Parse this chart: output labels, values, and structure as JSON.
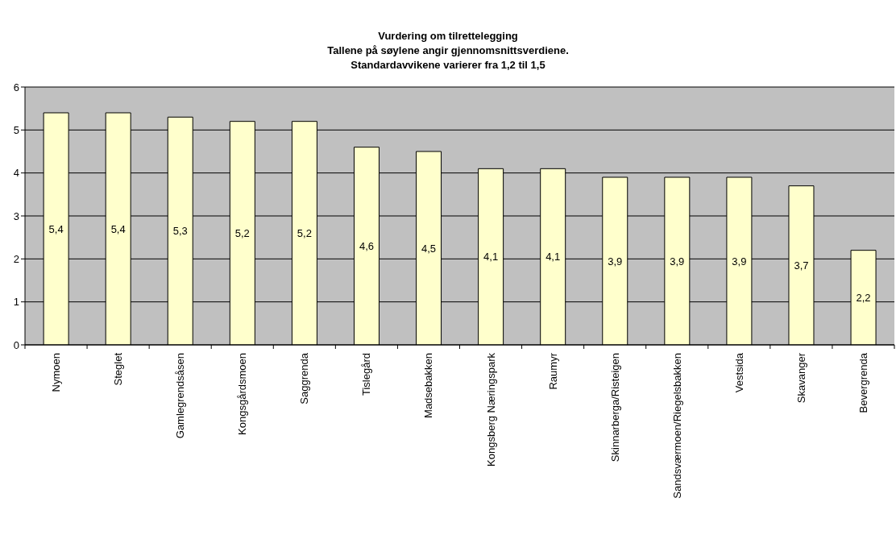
{
  "chart_data": {
    "type": "bar",
    "title": "Vurdering om tilrettelegging\nTallene på søylene angir gjennomsnittsverdiene.\nStandardavvikene varierer fra 1,2 til 1,5",
    "categories": [
      "Nymoen",
      "Steglet",
      "Gamlegrendsåsen",
      "Kongsgårdsmoen",
      "Saggrenda",
      "Tislegård",
      "Madsebakken",
      "Kongsberg Næringspark",
      "Raumyr",
      "Skinnarberga/Risteigen",
      "Sandsværmoen/Riegelsbakken",
      "Vestsida",
      "Skavanger",
      "Bevergrenda"
    ],
    "values": [
      5.4,
      5.4,
      5.3,
      5.2,
      5.2,
      4.6,
      4.5,
      4.1,
      4.1,
      3.9,
      3.9,
      3.9,
      3.7,
      2.2
    ],
    "value_labels": [
      "5,4",
      "5,4",
      "5,3",
      "5,2",
      "5,2",
      "4,6",
      "4,5",
      "4,1",
      "4,1",
      "3,9",
      "3,9",
      "3,9",
      "3,7",
      "2,2"
    ],
    "color": "#ffffcc",
    "ylim": [
      0,
      6
    ],
    "yticks": [
      0,
      1,
      2,
      3,
      4,
      5,
      6
    ],
    "grid": "y"
  }
}
